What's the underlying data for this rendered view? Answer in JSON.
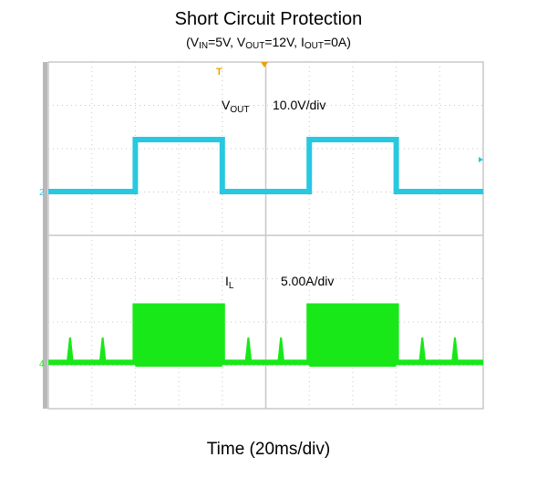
{
  "title": "Short Circuit Protection",
  "subtitle": {
    "vin_label": "V",
    "vin_sub": "IN",
    "vin_value": "=5V, ",
    "vout_label": "V",
    "vout_sub": "OUT",
    "vout_value": "=12V, ",
    "iout_label": "I",
    "iout_sub": "OUT",
    "iout_value": "=0A"
  },
  "xlabel": "Time (20ms/div)",
  "channels": {
    "ch1": {
      "name_main": "V",
      "name_sub": "OUT",
      "scale": "10.0V/div",
      "color": "#28c8e0",
      "marker": "2"
    },
    "ch2": {
      "name_main": "I",
      "name_sub": "L",
      "scale": "5.00A/div",
      "color": "#18e818",
      "marker": "4"
    }
  },
  "trigger_marker": "T",
  "colors": {
    "grid_bg": "#ffffff",
    "grid_line": "#c8c8c8",
    "trigger": "#f0a000"
  },
  "chart_data": {
    "type": "line",
    "title": "Short Circuit Protection",
    "xlabel": "Time (20ms/div)",
    "x_divisions": 10,
    "y_divisions": 8,
    "x_unit": "ms",
    "x_range": [
      0,
      200
    ],
    "series": [
      {
        "name": "VOUT",
        "scale": "10.0V/div",
        "x": [
          0,
          40,
          40,
          80,
          80,
          120,
          120,
          160,
          160,
          200
        ],
        "y": [
          0,
          0,
          12,
          12,
          0,
          0,
          12,
          12,
          0,
          0
        ]
      },
      {
        "name": "IL",
        "scale": "5.00A/div",
        "x": [
          0,
          40,
          40,
          80,
          80,
          120,
          120,
          160,
          160,
          200
        ],
        "y": [
          0.5,
          0.5,
          7,
          7,
          0.5,
          0.5,
          7,
          7,
          0.5,
          0.5
        ],
        "spikes_x": [
          10,
          25,
          92,
          107,
          172,
          187
        ]
      }
    ]
  }
}
